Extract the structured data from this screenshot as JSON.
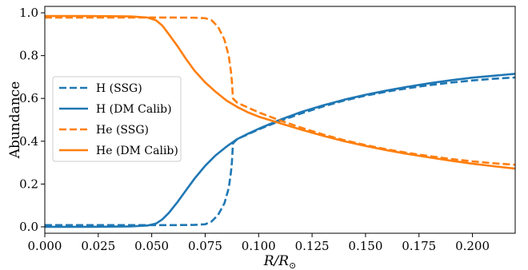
{
  "chart_data": {
    "type": "line",
    "xlabel": "R/R⊙",
    "ylabel": "Abundance",
    "xlim": [
      0.0,
      0.22
    ],
    "ylim": [
      -0.03,
      1.03
    ],
    "xticks": [
      "0.000",
      "0.025",
      "0.050",
      "0.075",
      "0.100",
      "0.125",
      "0.150",
      "0.175",
      "0.200"
    ],
    "xtick_values": [
      0.0,
      0.025,
      0.05,
      0.075,
      0.1,
      0.125,
      0.15,
      0.175,
      0.2
    ],
    "yticks": [
      "0.0",
      "0.2",
      "0.4",
      "0.6",
      "0.8",
      "1.0"
    ],
    "ytick_values": [
      0.0,
      0.2,
      0.4,
      0.6,
      0.8,
      1.0
    ],
    "grid": false,
    "legend_position": "center-left",
    "series": [
      {
        "name": "H (SSG)",
        "color": "#1f77b4",
        "style": "dashed",
        "x": [
          0.0,
          0.02,
          0.04,
          0.06,
          0.07,
          0.075,
          0.078,
          0.081,
          0.084,
          0.086,
          0.087,
          0.0875,
          0.088,
          0.09,
          0.1,
          0.11,
          0.12,
          0.13,
          0.14,
          0.15,
          0.16,
          0.17,
          0.18,
          0.19,
          0.2,
          0.21,
          0.22
        ],
        "y": [
          0.008,
          0.008,
          0.008,
          0.008,
          0.009,
          0.012,
          0.025,
          0.055,
          0.11,
          0.18,
          0.25,
          0.3,
          0.39,
          0.41,
          0.455,
          0.495,
          0.53,
          0.562,
          0.59,
          0.613,
          0.632,
          0.648,
          0.662,
          0.674,
          0.684,
          0.692,
          0.698
        ]
      },
      {
        "name": "H (DM Calib)",
        "color": "#1f77b4",
        "style": "solid",
        "x": [
          0.0,
          0.02,
          0.04,
          0.048,
          0.052,
          0.055,
          0.058,
          0.062,
          0.066,
          0.07,
          0.075,
          0.08,
          0.085,
          0.09,
          0.095,
          0.1,
          0.11,
          0.12,
          0.13,
          0.14,
          0.15,
          0.16,
          0.17,
          0.18,
          0.19,
          0.2,
          0.21,
          0.22
        ],
        "y": [
          0.0,
          0.0,
          0.002,
          0.006,
          0.015,
          0.035,
          0.065,
          0.115,
          0.17,
          0.225,
          0.285,
          0.335,
          0.375,
          0.41,
          0.435,
          0.458,
          0.5,
          0.537,
          0.567,
          0.594,
          0.617,
          0.637,
          0.655,
          0.671,
          0.685,
          0.697,
          0.706,
          0.715
        ]
      },
      {
        "name": "He (SSG)",
        "color": "#ff7f0e",
        "style": "dashed",
        "x": [
          0.0,
          0.02,
          0.04,
          0.06,
          0.07,
          0.075,
          0.078,
          0.081,
          0.084,
          0.086,
          0.087,
          0.0875,
          0.088,
          0.09,
          0.1,
          0.11,
          0.12,
          0.13,
          0.14,
          0.15,
          0.16,
          0.17,
          0.18,
          0.19,
          0.2,
          0.21,
          0.22
        ],
        "y": [
          0.978,
          0.978,
          0.978,
          0.978,
          0.977,
          0.975,
          0.965,
          0.935,
          0.875,
          0.8,
          0.73,
          0.68,
          0.6,
          0.58,
          0.535,
          0.497,
          0.463,
          0.432,
          0.405,
          0.382,
          0.362,
          0.345,
          0.33,
          0.317,
          0.306,
          0.297,
          0.29
        ]
      },
      {
        "name": "He (DM Calib)",
        "color": "#ff7f0e",
        "style": "solid",
        "x": [
          0.0,
          0.02,
          0.04,
          0.048,
          0.052,
          0.055,
          0.058,
          0.062,
          0.066,
          0.07,
          0.075,
          0.08,
          0.085,
          0.09,
          0.095,
          0.1,
          0.11,
          0.12,
          0.13,
          0.14,
          0.15,
          0.16,
          0.17,
          0.18,
          0.19,
          0.2,
          0.21,
          0.22
        ],
        "y": [
          0.985,
          0.985,
          0.983,
          0.978,
          0.965,
          0.94,
          0.9,
          0.845,
          0.785,
          0.73,
          0.675,
          0.63,
          0.59,
          0.56,
          0.535,
          0.515,
          0.484,
          0.454,
          0.426,
          0.4,
          0.378,
          0.358,
          0.34,
          0.324,
          0.309,
          0.295,
          0.283,
          0.272
        ]
      }
    ]
  }
}
